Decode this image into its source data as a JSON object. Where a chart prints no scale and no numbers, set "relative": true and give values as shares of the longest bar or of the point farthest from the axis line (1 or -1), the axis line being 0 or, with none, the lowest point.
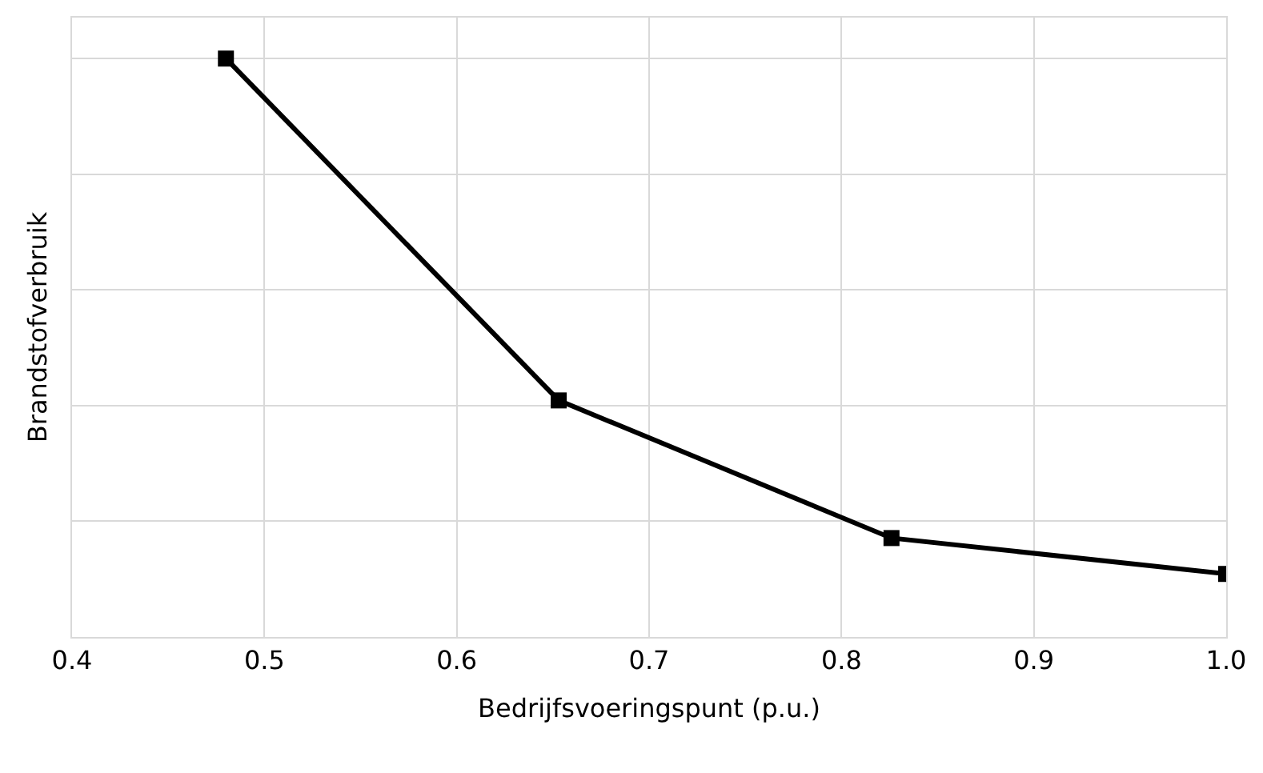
{
  "chart_data": {
    "type": "line",
    "xlabel": "Bedrijfsvoeringspunt (p.u.)",
    "ylabel": "Brandstofverbruik",
    "x": [
      0.48,
      0.653,
      0.826,
      1.0
    ],
    "series": [
      {
        "color": "#000000",
        "values": [
          1,
          0.409,
          0.171,
          0.109
        ]
      }
    ],
    "relative": true,
    "xlim": [
      0.4,
      1.0
    ],
    "xticks": [
      0.4,
      0.5,
      0.6,
      0.7,
      0.8,
      0.9,
      {
        "value": 1.0,
        "label": "1.0"
      }
    ],
    "grid": true,
    "legend": false,
    "marker": "square",
    "line_style": "solid"
  }
}
